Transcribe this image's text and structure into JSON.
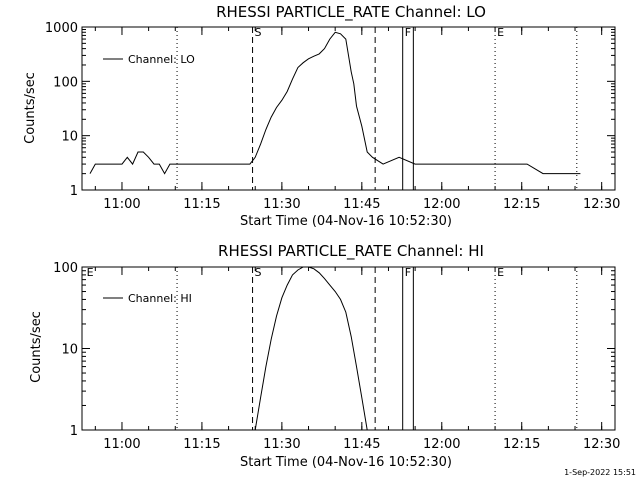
{
  "chart_data": [
    {
      "type": "line",
      "title": "RHESSI PARTICLE_RATE Channel: LO",
      "xlabel": "Start Time (04-Nov-16 10:52:30)",
      "ylabel": "Counts/sec",
      "yscale": "log",
      "xlim": [
        "10:52:30",
        "12:32:30"
      ],
      "ylim": [
        1,
        1000
      ],
      "x_ticks": [
        "11:00",
        "11:15",
        "11:30",
        "11:45",
        "12:00",
        "12:15",
        "12:30"
      ],
      "y_ticks": [
        "1",
        "10",
        "100",
        "1000"
      ],
      "legend": {
        "position": "top-left",
        "label": "Channel: LO"
      },
      "markers": [
        {
          "label": "S",
          "time": "11:24:30",
          "style": "dashed"
        },
        {
          "label": "",
          "time": "11:47:30",
          "style": "dashed"
        },
        {
          "label": "F",
          "time": "11:52:40",
          "style": "solid"
        },
        {
          "label": "",
          "time": "11:54:40",
          "style": "solid"
        },
        {
          "label": "",
          "time": "11:10:20",
          "style": "dotted"
        },
        {
          "label": "E",
          "time": "12:10:00",
          "style": "dotted"
        },
        {
          "label": "",
          "time": "12:25:20",
          "style": "dotted"
        }
      ],
      "series": [
        {
          "name": "Channel: LO",
          "x": [
            "10:54:00",
            "10:55:00",
            "10:57:00",
            "10:59:00",
            "11:00:00",
            "11:01:00",
            "11:02:00",
            "11:03:00",
            "11:04:00",
            "11:05:00",
            "11:06:00",
            "11:07:00",
            "11:08:00",
            "11:09:00",
            "11:10:00",
            "11:12:00",
            "11:15:00",
            "11:18:00",
            "11:21:00",
            "11:24:00",
            "11:25:00",
            "11:26:00",
            "11:27:00",
            "11:28:00",
            "11:29:00",
            "11:30:00",
            "11:31:00",
            "11:32:00",
            "11:33:00",
            "11:34:00",
            "11:35:00",
            "11:36:00",
            "11:37:00",
            "11:38:00",
            "11:39:00",
            "11:40:00",
            "11:41:00",
            "11:42:00",
            "11:42:30",
            "11:43:00",
            "11:43:30",
            "11:44:00",
            "11:45:00",
            "11:46:00",
            "11:47:00",
            "11:49:00",
            "11:52:00",
            "11:55:00",
            "11:58:00",
            "12:01:00",
            "12:04:00",
            "12:07:00",
            "12:10:00",
            "12:13:00",
            "12:16:00",
            "12:19:00",
            "12:22:00",
            "12:25:00",
            "12:26:00"
          ],
          "values": [
            2,
            3,
            3,
            3,
            3,
            4,
            3,
            5,
            5,
            4,
            3,
            3,
            2,
            3,
            3,
            3,
            3,
            3,
            3,
            3,
            4,
            7,
            13,
            22,
            33,
            45,
            65,
            110,
            180,
            220,
            260,
            290,
            320,
            400,
            600,
            800,
            750,
            600,
            300,
            150,
            90,
            35,
            15,
            5,
            4,
            3,
            4,
            3,
            3,
            3,
            3,
            3,
            3,
            3,
            3,
            2,
            2,
            2,
            2
          ]
        }
      ]
    },
    {
      "type": "line",
      "title": "RHESSI PARTICLE_RATE Channel: HI",
      "xlabel": "Start Time (04-Nov-16 10:52:30)",
      "ylabel": "Counts/sec",
      "yscale": "log",
      "xlim": [
        "10:52:30",
        "12:32:30"
      ],
      "ylim": [
        1,
        100
      ],
      "x_ticks": [
        "11:00",
        "11:15",
        "11:30",
        "11:45",
        "12:00",
        "12:15",
        "12:30"
      ],
      "y_ticks": [
        "1",
        "10",
        "100"
      ],
      "legend": {
        "position": "top-left",
        "label": "Channel: HI"
      },
      "markers": [
        {
          "label": "S",
          "time": "11:24:30",
          "style": "dashed"
        },
        {
          "label": "",
          "time": "11:47:30",
          "style": "dashed"
        },
        {
          "label": "F",
          "time": "11:52:40",
          "style": "solid"
        },
        {
          "label": "",
          "time": "11:54:40",
          "style": "solid"
        },
        {
          "label": "",
          "time": "11:10:20",
          "style": "dotted"
        },
        {
          "label": "E",
          "time": "12:10:00",
          "style": "dotted"
        },
        {
          "label": "",
          "time": "12:25:20",
          "style": "dotted"
        },
        {
          "label": "E",
          "time": "10:53:00",
          "style": "none"
        }
      ],
      "series": [
        {
          "name": "Channel: HI",
          "x": [
            "11:25:00",
            "11:26:00",
            "11:27:00",
            "11:28:00",
            "11:29:00",
            "11:30:00",
            "11:31:00",
            "11:32:00",
            "11:33:00",
            "11:34:00",
            "11:35:00",
            "11:36:00",
            "11:37:00",
            "11:38:00",
            "11:39:00",
            "11:40:00",
            "11:41:00",
            "11:42:00",
            "11:43:00",
            "11:44:00",
            "11:45:00",
            "11:46:00"
          ],
          "values": [
            1,
            2.5,
            6,
            13,
            25,
            42,
            60,
            80,
            92,
            100,
            100,
            95,
            85,
            72,
            60,
            50,
            40,
            28,
            14,
            6,
            2.5,
            1
          ]
        }
      ]
    }
  ],
  "footer": {
    "timestamp": "1-Sep-2022 15:51"
  }
}
